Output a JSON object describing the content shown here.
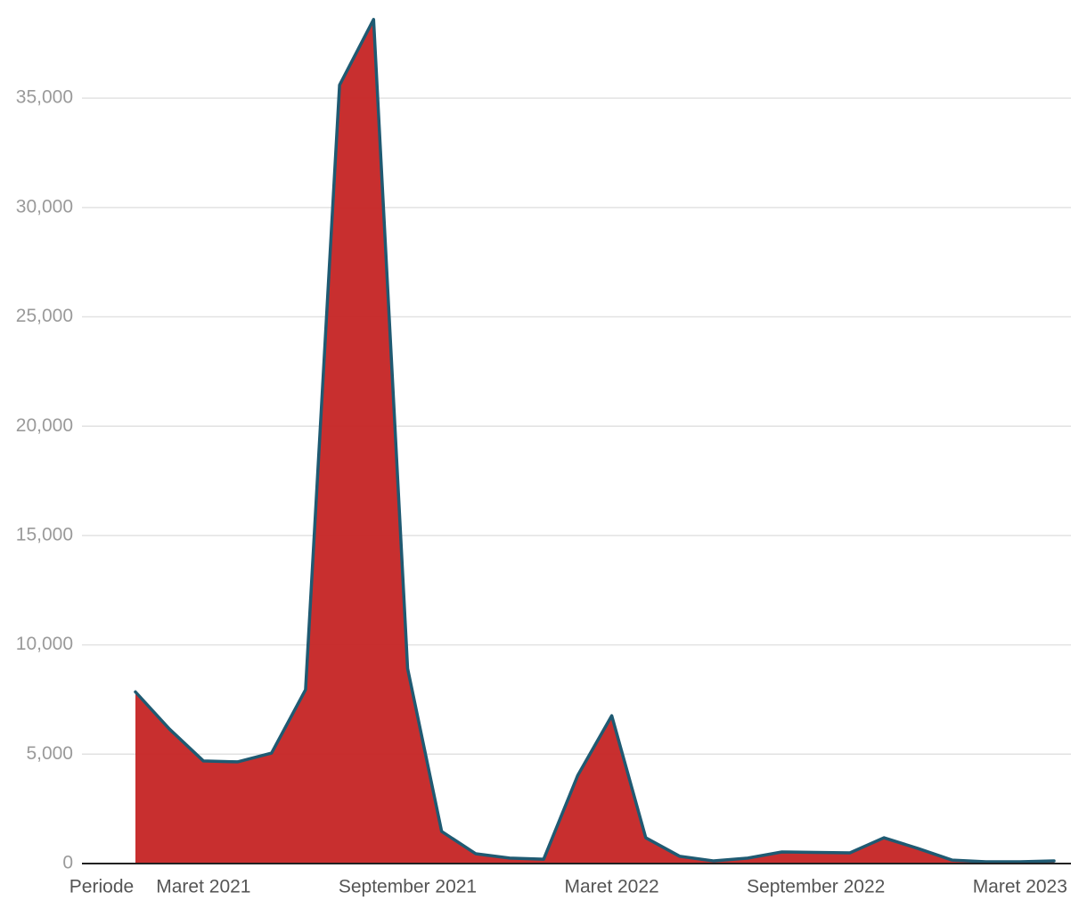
{
  "chart_data": {
    "type": "area",
    "x_label": "Periode",
    "categories": [
      null,
      null,
      "Maret 2021",
      null,
      null,
      null,
      null,
      null,
      "September 2021",
      null,
      null,
      null,
      null,
      null,
      "Maret 2022",
      null,
      null,
      null,
      null,
      null,
      "September 2022",
      null,
      null,
      null,
      null,
      null,
      "Maret 2023",
      null
    ],
    "series": [
      {
        "color": "#c62828",
        "line_color": "#1f5a72",
        "values": [
          7850,
          6150,
          4690,
          4650,
          5050,
          7950,
          35600,
          38600,
          8920,
          1470,
          450,
          250,
          200,
          4030,
          6760,
          1180,
          330,
          120,
          250,
          530,
          510,
          490,
          1180,
          690,
          160,
          80,
          80,
          120
        ]
      }
    ],
    "ylim": [
      0,
      39000
    ],
    "yticks": [
      0,
      {
        "value": 5000,
        "label": "5,000"
      },
      {
        "value": 10000,
        "label": "10,000"
      },
      {
        "value": 15000,
        "label": "15,000"
      },
      {
        "value": 20000,
        "label": "20,000"
      },
      {
        "value": 25000,
        "label": "25,000"
      },
      {
        "value": 30000,
        "label": "30,000"
      },
      {
        "value": 35000,
        "label": "35,000"
      }
    ],
    "grid": true
  }
}
